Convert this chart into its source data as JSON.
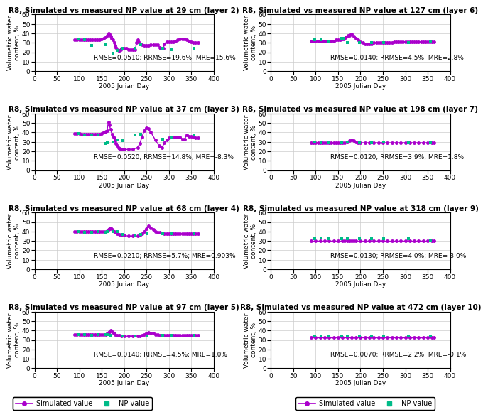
{
  "panels": [
    {
      "title": "R8, Simulated vs measured NP value at 29 cm (layer 2)",
      "rmse_text": "RMSE=0.0510; RRMSE=19.6%; MRE=15.6%",
      "sim_x": [
        90,
        95,
        100,
        105,
        110,
        115,
        120,
        125,
        130,
        135,
        140,
        145,
        150,
        155,
        160,
        162,
        165,
        168,
        170,
        172,
        175,
        178,
        180,
        182,
        185,
        188,
        190,
        193,
        195,
        198,
        200,
        205,
        210,
        215,
        220,
        225,
        228,
        230,
        232,
        235,
        240,
        245,
        250,
        255,
        260,
        265,
        270,
        275,
        280,
        282,
        285,
        288,
        290,
        295,
        300,
        305,
        310,
        315,
        320,
        325,
        330,
        335,
        340,
        345,
        350,
        355,
        360,
        365
      ],
      "sim_y": [
        33,
        33,
        33,
        33,
        33,
        33,
        33,
        33,
        33,
        33,
        33,
        33,
        34,
        35,
        36,
        38,
        40,
        39,
        37,
        35,
        33,
        30,
        27,
        25,
        23,
        22,
        22,
        23,
        24,
        24,
        24,
        24,
        23,
        23,
        23,
        23,
        30,
        33,
        31,
        29,
        28,
        27,
        27,
        27,
        28,
        28,
        28,
        28,
        25,
        24,
        24,
        24,
        29,
        31,
        31,
        31,
        31,
        32,
        33,
        34,
        34,
        34,
        33,
        32,
        31,
        30,
        30,
        30
      ],
      "obs_x": [
        97,
        112,
        128,
        158,
        175,
        184,
        197,
        224,
        237,
        286,
        307,
        356
      ],
      "obs_y": [
        34,
        33,
        27,
        28,
        19,
        22,
        24,
        24,
        28,
        24,
        23,
        24
      ]
    },
    {
      "title": "R8, Simulated vs measured NP value at 127 cm (layer 6)",
      "rmse_text": "RMSE=0.0140; RRMSE=4.5%; MRE=2.8%",
      "sim_x": [
        90,
        95,
        100,
        105,
        110,
        115,
        120,
        125,
        130,
        135,
        140,
        145,
        150,
        155,
        160,
        162,
        165,
        168,
        170,
        172,
        175,
        178,
        180,
        185,
        190,
        195,
        200,
        205,
        210,
        215,
        220,
        225,
        230,
        235,
        240,
        245,
        250,
        255,
        260,
        265,
        270,
        275,
        280,
        285,
        290,
        295,
        300,
        305,
        310,
        315,
        320,
        325,
        330,
        335,
        340,
        345,
        350,
        355,
        360,
        365
      ],
      "sim_y": [
        32,
        32,
        32,
        32,
        32,
        32,
        32,
        32,
        32,
        32,
        32,
        33,
        33,
        33,
        34,
        34,
        35,
        36,
        37,
        38,
        38,
        39,
        39,
        37,
        35,
        33,
        31,
        30,
        29,
        29,
        29,
        29,
        30,
        30,
        30,
        30,
        30,
        30,
        30,
        30,
        30,
        31,
        31,
        31,
        31,
        31,
        31,
        31,
        31,
        31,
        31,
        31,
        31,
        31,
        31,
        31,
        31,
        31,
        31,
        31
      ],
      "obs_x": [
        97,
        112,
        128,
        158,
        163,
        170,
        197,
        224,
        251,
        307,
        356
      ],
      "obs_y": [
        33,
        33,
        31,
        35,
        35,
        30,
        30,
        30,
        30,
        30,
        31
      ]
    },
    {
      "title": "R8, Simulated vs measured NP value at 37 cm (layer 3)",
      "rmse_text": "RMSE=0.0520; RRMSE=14.8%; MRE=-8.3%",
      "sim_x": [
        90,
        95,
        100,
        105,
        110,
        115,
        120,
        125,
        130,
        135,
        140,
        145,
        150,
        155,
        158,
        160,
        162,
        165,
        167,
        170,
        173,
        175,
        178,
        180,
        182,
        185,
        188,
        190,
        193,
        195,
        198,
        200,
        210,
        220,
        230,
        235,
        240,
        245,
        250,
        255,
        260,
        270,
        278,
        280,
        285,
        290,
        295,
        300,
        305,
        310,
        315,
        320,
        325,
        330,
        335,
        340,
        345,
        350,
        355,
        360,
        365
      ],
      "sim_y": [
        39,
        39,
        39,
        38,
        38,
        38,
        38,
        38,
        38,
        38,
        38,
        38,
        39,
        40,
        40,
        41,
        42,
        51,
        48,
        43,
        38,
        36,
        34,
        31,
        28,
        26,
        24,
        23,
        22,
        22,
        22,
        22,
        22,
        22,
        24,
        28,
        35,
        42,
        45,
        44,
        40,
        32,
        26,
        25,
        24,
        29,
        32,
        34,
        35,
        35,
        35,
        35,
        35,
        33,
        33,
        37,
        36,
        36,
        35,
        34,
        34
      ],
      "obs_x": [
        97,
        112,
        128,
        142,
        158,
        163,
        175,
        184,
        197,
        224,
        237,
        286,
        307,
        356
      ],
      "obs_y": [
        39,
        37,
        37,
        37,
        28,
        29,
        30,
        32,
        31,
        37,
        38,
        33,
        34,
        37
      ]
    },
    {
      "title": "R8, Simulated vs measured NP value at 198 cm (layer 7)",
      "rmse_text": "RMSE=0.0120; RRMSE=3.9%; MRE=1.8%",
      "sim_x": [
        90,
        95,
        100,
        105,
        110,
        115,
        120,
        125,
        130,
        135,
        140,
        145,
        150,
        155,
        160,
        165,
        170,
        175,
        180,
        185,
        190,
        195,
        200,
        210,
        220,
        230,
        240,
        250,
        260,
        270,
        280,
        290,
        300,
        310,
        320,
        330,
        340,
        350,
        360,
        365
      ],
      "sim_y": [
        29,
        29,
        29,
        29,
        29,
        29,
        29,
        29,
        29,
        29,
        29,
        29,
        29,
        29,
        29,
        29,
        30,
        31,
        32,
        31,
        30,
        29,
        29,
        29,
        29,
        29,
        29,
        29,
        29,
        29,
        29,
        29,
        29,
        29,
        29,
        29,
        29,
        29,
        29,
        29
      ],
      "obs_x": [
        97,
        112,
        128,
        158,
        170,
        197,
        224,
        251,
        307,
        356
      ],
      "obs_y": [
        30,
        29,
        29,
        29,
        30,
        29,
        29,
        30,
        29,
        29
      ]
    },
    {
      "title": "R8, Simulated vs measured NP value at 68 cm (layer 4)",
      "rmse_text": "RMSE=0.0210; RRMSE=5.7%; MRE=0.903%",
      "sim_x": [
        90,
        95,
        100,
        105,
        110,
        115,
        120,
        125,
        130,
        135,
        140,
        145,
        150,
        155,
        160,
        163,
        165,
        168,
        170,
        173,
        175,
        178,
        180,
        185,
        190,
        195,
        200,
        210,
        220,
        230,
        235,
        240,
        245,
        250,
        255,
        260,
        265,
        270,
        275,
        280,
        290,
        295,
        300,
        305,
        310,
        315,
        320,
        325,
        330,
        335,
        340,
        345,
        350,
        355,
        360,
        365
      ],
      "sim_y": [
        40,
        40,
        40,
        40,
        40,
        40,
        40,
        40,
        40,
        40,
        40,
        40,
        40,
        40,
        40,
        41,
        42,
        43,
        44,
        42,
        41,
        40,
        39,
        38,
        37,
        36,
        36,
        35,
        35,
        35,
        36,
        38,
        40,
        43,
        46,
        44,
        42,
        40,
        39,
        39,
        38,
        38,
        38,
        38,
        38,
        38,
        38,
        38,
        38,
        38,
        38,
        38,
        38,
        38,
        38,
        38
      ],
      "obs_x": [
        97,
        112,
        128,
        142,
        158,
        163,
        175,
        184,
        197,
        224,
        237,
        251,
        286,
        307,
        356
      ],
      "obs_y": [
        40,
        39,
        39,
        40,
        39,
        40,
        40,
        40,
        37,
        35,
        37,
        38,
        38,
        38,
        38
      ]
    },
    {
      "title": "R8, Simulated vs measured NP value at 318 cm (layer 9)",
      "rmse_text": "RMSE=0.0130; RRMSE=4.0%; MRE=-3.0%",
      "sim_x": [
        90,
        100,
        110,
        120,
        130,
        140,
        150,
        160,
        165,
        170,
        175,
        180,
        185,
        190,
        200,
        210,
        220,
        230,
        240,
        250,
        260,
        270,
        280,
        290,
        300,
        310,
        320,
        330,
        340,
        350,
        360,
        365
      ],
      "sim_y": [
        30,
        30,
        30,
        30,
        30,
        30,
        30,
        30,
        30,
        30,
        30,
        30,
        30,
        30,
        30,
        30,
        30,
        30,
        30,
        30,
        30,
        30,
        30,
        30,
        30,
        30,
        30,
        30,
        30,
        30,
        30,
        30
      ],
      "obs_x": [
        97,
        112,
        128,
        158,
        170,
        197,
        224,
        251,
        307,
        356
      ],
      "obs_y": [
        32,
        33,
        32,
        32,
        32,
        32,
        32,
        32,
        32,
        31
      ]
    },
    {
      "title": "R8, Simulated vs measured NP value at 97 cm (layer 5)",
      "rmse_text": "RMSE=0.0140; RRMSE=4.5%; MRE=1.0%",
      "sim_x": [
        90,
        95,
        100,
        105,
        110,
        115,
        120,
        125,
        130,
        135,
        140,
        145,
        150,
        155,
        160,
        163,
        165,
        168,
        170,
        173,
        175,
        178,
        180,
        185,
        190,
        195,
        200,
        210,
        220,
        230,
        235,
        240,
        245,
        250,
        255,
        260,
        265,
        270,
        275,
        280,
        285,
        290,
        295,
        300,
        305,
        310,
        315,
        320,
        325,
        330,
        335,
        340,
        345,
        350,
        355,
        360,
        365
      ],
      "sim_y": [
        36,
        36,
        36,
        36,
        36,
        36,
        36,
        36,
        36,
        36,
        36,
        36,
        36,
        36,
        36,
        37,
        38,
        39,
        40,
        39,
        38,
        37,
        36,
        35,
        35,
        34,
        34,
        34,
        34,
        34,
        34,
        35,
        36,
        37,
        38,
        37,
        37,
        36,
        36,
        35,
        35,
        35,
        35,
        35,
        35,
        35,
        35,
        35,
        35,
        35,
        35,
        35,
        35,
        35,
        35,
        35,
        35
      ],
      "obs_x": [
        97,
        112,
        128,
        142,
        158,
        163,
        170,
        197,
        224,
        251,
        286,
        307,
        356
      ],
      "obs_y": [
        36,
        36,
        35,
        36,
        36,
        36,
        35,
        34,
        34,
        34,
        35,
        35,
        35
      ]
    },
    {
      "title": "R8, Simulated vs measured NP value at 472 cm (layer 10)",
      "rmse_text": "RMSE=0.0070; RRMSE=2.2%; MRE=-0.1%",
      "sim_x": [
        90,
        100,
        110,
        120,
        130,
        140,
        150,
        160,
        170,
        180,
        190,
        200,
        210,
        220,
        230,
        240,
        250,
        260,
        270,
        280,
        290,
        300,
        310,
        320,
        330,
        340,
        350,
        360,
        365
      ],
      "sim_y": [
        33,
        33,
        33,
        33,
        33,
        33,
        33,
        33,
        33,
        33,
        33,
        33,
        33,
        33,
        33,
        33,
        33,
        33,
        33,
        33,
        33,
        33,
        33,
        33,
        33,
        33,
        33,
        33,
        33
      ],
      "obs_x": [
        97,
        112,
        128,
        158,
        170,
        197,
        224,
        251,
        307,
        356
      ],
      "obs_y": [
        34,
        34,
        34,
        34,
        34,
        34,
        34,
        34,
        34,
        34
      ]
    }
  ],
  "sim_color": "#aa00cc",
  "obs_color": "#00bb88",
  "xlabel": "2005 Julian Day",
  "ylabel": "Volumetric water\ncontent, %",
  "xlim": [
    0,
    400
  ],
  "xticks": [
    0,
    50,
    100,
    150,
    200,
    250,
    300,
    350,
    400
  ],
  "ylim": [
    0,
    60
  ],
  "yticks": [
    0,
    10,
    20,
    30,
    40,
    50,
    60
  ],
  "legend_sim_label": "Simulated value",
  "legend_obs_label": "NP value",
  "title_fontsize": 7.5,
  "label_fontsize": 6.5,
  "tick_fontsize": 6.5,
  "annot_fontsize": 6.5
}
